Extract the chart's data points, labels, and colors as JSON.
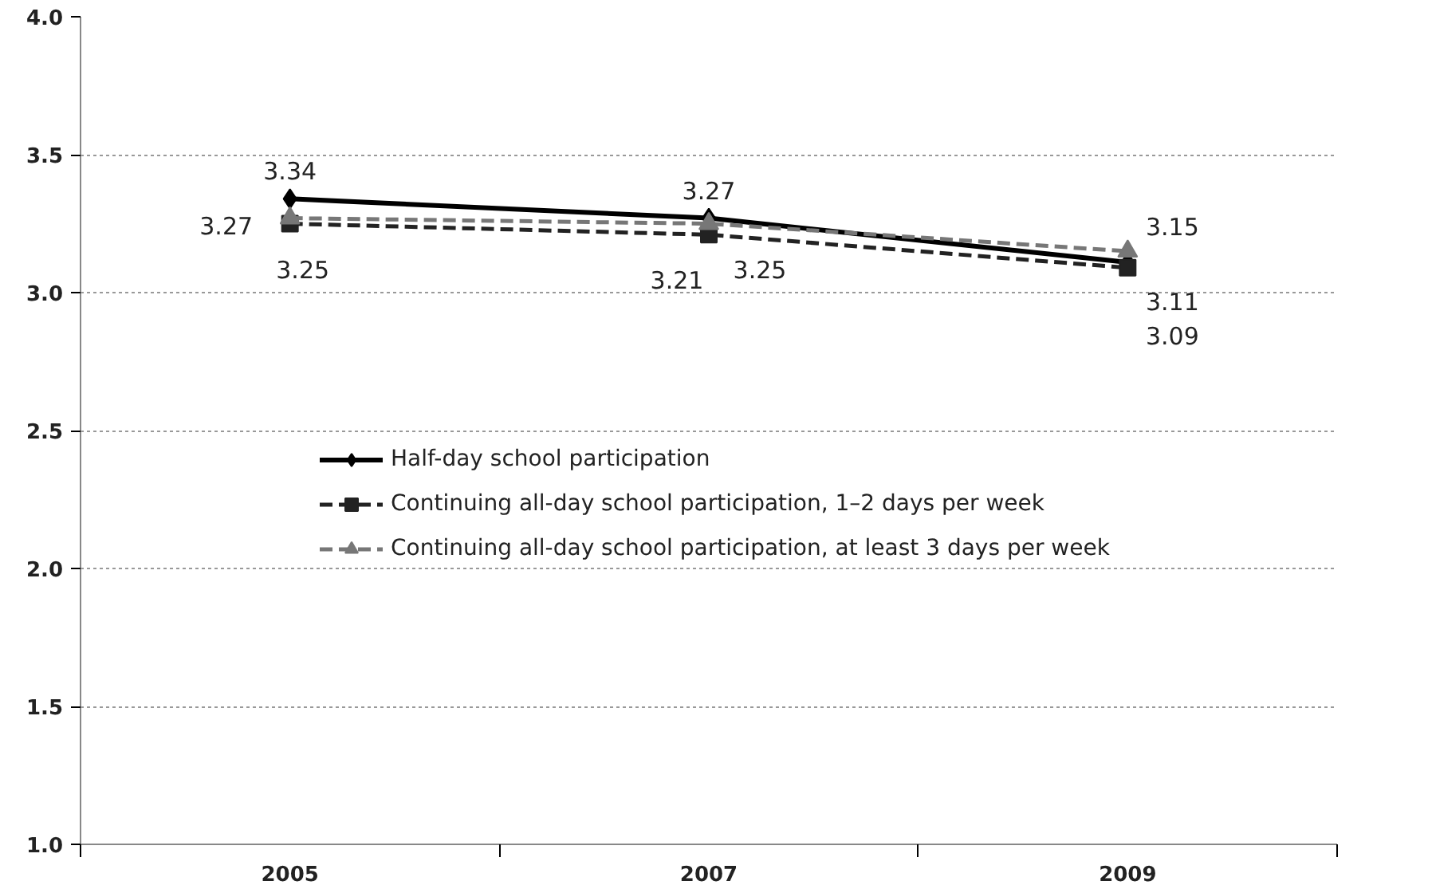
{
  "chart_data": {
    "type": "line",
    "categories": [
      "2005",
      "2007",
      "2009"
    ],
    "series": [
      {
        "name": "Half-day school participation",
        "color": "#000000",
        "values": [
          3.34,
          3.27,
          3.11
        ],
        "marker": "diamond",
        "line_style": "solid"
      },
      {
        "name": "Continuing all-day school participation, 1–2 days per week",
        "color": "#222222",
        "values": [
          3.25,
          3.21,
          3.09
        ],
        "marker": "square",
        "line_style": "dashed"
      },
      {
        "name": "Continuing all-day school participation, at least 3 days per week",
        "color": "#777777",
        "values": [
          3.27,
          3.25,
          3.15
        ],
        "marker": "triangle",
        "line_style": "dashed"
      }
    ],
    "ylim": [
      1.0,
      4.0
    ],
    "yticks": [
      {
        "value": 1.0,
        "label": "1.0"
      },
      {
        "value": 1.5,
        "label": "1.5"
      },
      {
        "value": 2.0,
        "label": "2.0"
      },
      {
        "value": 2.5,
        "label": "2.5"
      },
      {
        "value": 3.0,
        "label": "3.0"
      },
      {
        "value": 3.5,
        "label": "3.5"
      },
      {
        "value": 4.0,
        "label": "4.0"
      }
    ],
    "grid": "y",
    "legend": "center",
    "data_labels": true
  }
}
